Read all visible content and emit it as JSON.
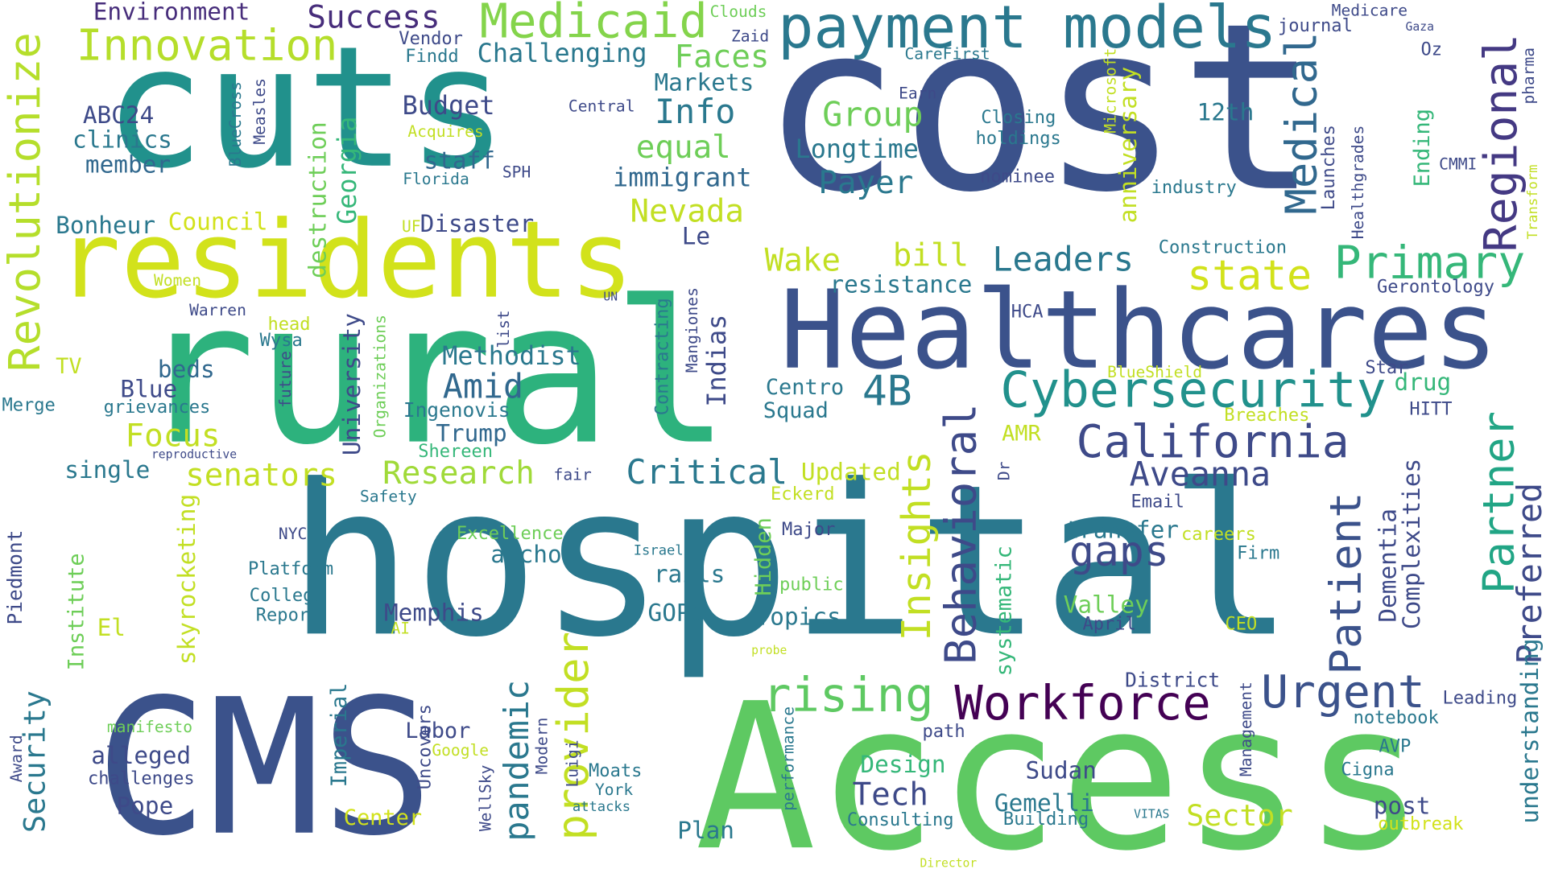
{
  "words": [
    {
      "text": "hospital",
      "color": "#2a788e"
    },
    {
      "text": "cost",
      "color": "#3b528b"
    },
    {
      "text": "cuts",
      "color": "#21918c"
    },
    {
      "text": "rural",
      "color": "#2db27d"
    },
    {
      "text": "residents",
      "color": "#d2e21b"
    },
    {
      "text": "Access",
      "color": "#5ec962"
    },
    {
      "text": "CMS",
      "color": "#3b528b"
    },
    {
      "text": "Healthcares",
      "color": "#3b528b"
    },
    {
      "text": "payment models",
      "color": "#2a788e"
    },
    {
      "text": "Medicaid",
      "color": "#84d44b"
    },
    {
      "text": "Innovation",
      "color": "#b5de2b"
    },
    {
      "text": "Success",
      "color": "#472d7b"
    },
    {
      "text": "Environment",
      "color": "#472d7b"
    },
    {
      "text": "Revolutionize",
      "color": "#b5de2b"
    },
    {
      "text": "Cybersecurity",
      "color": "#21918c"
    },
    {
      "text": "California",
      "color": "#3e4a89"
    },
    {
      "text": "Primary",
      "color": "#35b779"
    },
    {
      "text": "Regional",
      "color": "#443983"
    },
    {
      "text": "Medical",
      "color": "#31688e"
    },
    {
      "text": "Partner",
      "color": "#21a585"
    },
    {
      "text": "Patient",
      "color": "#3b528b"
    },
    {
      "text": "Behavioral",
      "color": "#3e4a89"
    },
    {
      "text": "Insights",
      "color": "#c2df23"
    },
    {
      "text": "Workforce",
      "color": "#440154"
    },
    {
      "text": "Urgent",
      "color": "#3b528b"
    },
    {
      "text": "rising",
      "color": "#5ec962"
    },
    {
      "text": "provider",
      "color": "#c2df23"
    },
    {
      "text": "pandemic",
      "color": "#2a788e"
    },
    {
      "text": "gaps",
      "color": "#3e4a89"
    },
    {
      "text": "state",
      "color": "#d2e21b"
    },
    {
      "text": "Leaders",
      "color": "#2a788e"
    },
    {
      "text": "Preferred",
      "color": "#3e4a89"
    },
    {
      "text": "Aveanna",
      "color": "#3e4a89"
    },
    {
      "text": "Critical",
      "color": "#2a788e"
    },
    {
      "text": "Research",
      "color": "#a0da39"
    },
    {
      "text": "senators",
      "color": "#c2df23"
    },
    {
      "text": "Amid",
      "color": "#31688e"
    },
    {
      "text": "4B",
      "color": "#2a788e"
    },
    {
      "text": "Focus",
      "color": "#c2df23"
    },
    {
      "text": "Security",
      "color": "#2a788e"
    },
    {
      "text": "Group",
      "color": "#6ece58"
    },
    {
      "text": "Info",
      "color": "#2a788e"
    },
    {
      "text": "equal",
      "color": "#6ece58"
    },
    {
      "text": "Faces",
      "color": "#6ece58"
    },
    {
      "text": "Challenging",
      "color": "#2a788e"
    },
    {
      "text": "Markets",
      "color": "#2a788e"
    },
    {
      "text": "Budget",
      "color": "#3e4a89"
    },
    {
      "text": "Longtime",
      "color": "#2a788e"
    },
    {
      "text": "Payer",
      "color": "#2a788e"
    },
    {
      "text": "immigrant",
      "color": "#31688e"
    },
    {
      "text": "Nevada",
      "color": "#c2df23"
    },
    {
      "text": "staff",
      "color": "#31688e"
    },
    {
      "text": "Wake",
      "color": "#c2df23"
    },
    {
      "text": "bill",
      "color": "#c2df23"
    },
    {
      "text": "resistance",
      "color": "#2a788e"
    },
    {
      "text": "Methodist",
      "color": "#2a788e"
    },
    {
      "text": "Disaster",
      "color": "#3e4a89"
    },
    {
      "text": "Council",
      "color": "#d2e21b"
    },
    {
      "text": "Bonheur",
      "color": "#2a788e"
    },
    {
      "text": "ABC24",
      "color": "#3e4a89"
    },
    {
      "text": "clinics",
      "color": "#2a788e"
    },
    {
      "text": "member",
      "color": "#31688e"
    },
    {
      "text": "Georgia",
      "color": "#35b779"
    },
    {
      "text": "destruction",
      "color": "#6ece58"
    },
    {
      "text": "University",
      "color": "#3e4a89"
    },
    {
      "text": "Organizations",
      "color": "#6ece58"
    },
    {
      "text": "Trump",
      "color": "#31688e"
    },
    {
      "text": "Ingenovis",
      "color": "#2a788e"
    },
    {
      "text": "Shereen",
      "color": "#35b779"
    },
    {
      "text": "beds",
      "color": "#31688e"
    },
    {
      "text": "Blue",
      "color": "#3e4a89"
    },
    {
      "text": "grievances",
      "color": "#2a788e"
    },
    {
      "text": "TV",
      "color": "#c2df23"
    },
    {
      "text": "Merge",
      "color": "#2a788e"
    },
    {
      "text": "single",
      "color": "#2a788e"
    },
    {
      "text": "Centro",
      "color": "#2a788e"
    },
    {
      "text": "Squad",
      "color": "#2a788e"
    },
    {
      "text": "Indias",
      "color": "#3e4a89"
    },
    {
      "text": "Le",
      "color": "#3e4a89"
    },
    {
      "text": "AMR",
      "color": "#c2df23"
    },
    {
      "text": "Updated",
      "color": "#c2df23"
    },
    {
      "text": "Eckerd",
      "color": "#c2df23"
    },
    {
      "text": "transfer",
      "color": "#2a788e"
    },
    {
      "text": "Email",
      "color": "#3e4a89"
    },
    {
      "text": "careers",
      "color": "#c2df23"
    },
    {
      "text": "Firm",
      "color": "#2a788e"
    },
    {
      "text": "Valley",
      "color": "#6ece58"
    },
    {
      "text": "April",
      "color": "#3e4a89"
    },
    {
      "text": "CEO",
      "color": "#c2df23"
    },
    {
      "text": "Dementia",
      "color": "#3e4a89"
    },
    {
      "text": "Complexities",
      "color": "#3e4a89"
    },
    {
      "text": "understanding",
      "color": "#2a788e"
    },
    {
      "text": "systematic",
      "color": "#35b779"
    },
    {
      "text": "Dr",
      "color": "#3e4a89"
    },
    {
      "text": "anchor",
      "color": "#2a788e"
    },
    {
      "text": "rails",
      "color": "#2a788e"
    },
    {
      "text": "GOPs",
      "color": "#2a788e"
    },
    {
      "text": "Topics",
      "color": "#2a788e"
    },
    {
      "text": "Hidden",
      "color": "#6ece58"
    },
    {
      "text": "public",
      "color": "#6ece58"
    },
    {
      "text": "Major",
      "color": "#3e4a89"
    },
    {
      "text": "Israels",
      "color": "#2a788e"
    },
    {
      "text": "Excellence",
      "color": "#6ece58"
    },
    {
      "text": "skyrocketing",
      "color": "#c2df23"
    },
    {
      "text": "Platform",
      "color": "#2a788e"
    },
    {
      "text": "College",
      "color": "#2a788e"
    },
    {
      "text": "Report",
      "color": "#2a788e"
    },
    {
      "text": "NYC",
      "color": "#3e4a89"
    },
    {
      "text": "Memphis",
      "color": "#3e4a89"
    },
    {
      "text": "AI",
      "color": "#c2df23"
    },
    {
      "text": "El",
      "color": "#c2df23"
    },
    {
      "text": "Institute",
      "color": "#6ece58"
    },
    {
      "text": "Piedmont",
      "color": "#3e4a89"
    },
    {
      "text": "Safety",
      "color": "#2a788e"
    },
    {
      "text": "fair",
      "color": "#3e4a89"
    },
    {
      "text": "reproductive",
      "color": "#3e4a89"
    },
    {
      "text": "District",
      "color": "#3e4a89"
    },
    {
      "text": "Labor",
      "color": "#3e4a89"
    },
    {
      "text": "alleged",
      "color": "#3e4a89"
    },
    {
      "text": "challenges",
      "color": "#3e4a89"
    },
    {
      "text": "Pope",
      "color": "#3e4a89"
    },
    {
      "text": "manifesto",
      "color": "#6ece58"
    },
    {
      "text": "Imperial",
      "color": "#2a788e"
    },
    {
      "text": "Center",
      "color": "#d2e21b"
    },
    {
      "text": "Google",
      "color": "#c2df23"
    },
    {
      "text": "Uncovers",
      "color": "#3e4a89"
    },
    {
      "text": "Modern",
      "color": "#3e4a89"
    },
    {
      "text": "Luigi",
      "color": "#3e4a89"
    },
    {
      "text": "Moats",
      "color": "#2a788e"
    },
    {
      "text": "York",
      "color": "#2a788e"
    },
    {
      "text": "attacks",
      "color": "#2a788e"
    },
    {
      "text": "WellSky",
      "color": "#3e4a89"
    },
    {
      "text": "Award",
      "color": "#3e4a89"
    },
    {
      "text": "Plan",
      "color": "#2a788e"
    },
    {
      "text": "performance",
      "color": "#2a788e"
    },
    {
      "text": "Design",
      "color": "#35b779"
    },
    {
      "text": "Tech",
      "color": "#3e4a89"
    },
    {
      "text": "Consulting",
      "color": "#2a788e"
    },
    {
      "text": "path",
      "color": "#3e4a89"
    },
    {
      "text": "Sudan",
      "color": "#3e4a89"
    },
    {
      "text": "Gemelli",
      "color": "#2a788e"
    },
    {
      "text": "Building",
      "color": "#2a788e"
    },
    {
      "text": "Sector",
      "color": "#c2df23"
    },
    {
      "text": "VITAS",
      "color": "#2a788e"
    },
    {
      "text": "Management",
      "color": "#3e4a89"
    },
    {
      "text": "post",
      "color": "#3e4a89"
    },
    {
      "text": "outbreak",
      "color": "#d2e21b"
    },
    {
      "text": "notebook",
      "color": "#2a788e"
    },
    {
      "text": "Leading",
      "color": "#3e4a89"
    },
    {
      "text": "AVP",
      "color": "#2a788e"
    },
    {
      "text": "Cigna",
      "color": "#2a788e"
    },
    {
      "text": "Director",
      "color": "#c2df23"
    },
    {
      "text": "probe",
      "color": "#c2df23"
    },
    {
      "text": "Contracting",
      "color": "#2a788e"
    },
    {
      "text": "Mangiones",
      "color": "#3e4a89"
    },
    {
      "text": "list",
      "color": "#3e4a89"
    },
    {
      "text": "UN",
      "color": "#3e4a89"
    },
    {
      "text": "Warren",
      "color": "#3e4a89"
    },
    {
      "text": "head",
      "color": "#c2df23"
    },
    {
      "text": "Wysa",
      "color": "#2a788e"
    },
    {
      "text": "future",
      "color": "#3e4a89"
    },
    {
      "text": "Women",
      "color": "#c2df23"
    },
    {
      "text": "UF",
      "color": "#c2df23"
    },
    {
      "text": "Florida",
      "color": "#2a788e"
    },
    {
      "text": "SPH",
      "color": "#3e4a89"
    },
    {
      "text": "Acquires",
      "color": "#c2df23"
    },
    {
      "text": "Central",
      "color": "#3e4a89"
    },
    {
      "text": "Vendor",
      "color": "#3e4a89"
    },
    {
      "text": "Findd",
      "color": "#2a788e"
    },
    {
      "text": "Zaid",
      "color": "#3e4a89"
    },
    {
      "text": "Clouds",
      "color": "#6ece58"
    },
    {
      "text": "Measles",
      "color": "#3e4a89"
    },
    {
      "text": "BlueCross",
      "color": "#2a788e"
    },
    {
      "text": "Earn",
      "color": "#3e4a89"
    },
    {
      "text": "CareFirst",
      "color": "#2a788e"
    },
    {
      "text": "Closing",
      "color": "#2a788e"
    },
    {
      "text": "holdings",
      "color": "#2a788e"
    },
    {
      "text": "nominee",
      "color": "#3e4a89"
    },
    {
      "text": "Microsoft",
      "color": "#c2df23"
    },
    {
      "text": "anniversary",
      "color": "#c2df23"
    },
    {
      "text": "12th",
      "color": "#2a788e"
    },
    {
      "text": "Launches",
      "color": "#3e4a89"
    },
    {
      "text": "Construction",
      "color": "#2a788e"
    },
    {
      "text": "industry",
      "color": "#2a788e"
    },
    {
      "text": "Healthgrades",
      "color": "#3e4a89"
    },
    {
      "text": "Ending",
      "color": "#35b779"
    },
    {
      "text": "CMMI",
      "color": "#3e4a89"
    },
    {
      "text": "pharma",
      "color": "#3e4a89"
    },
    {
      "text": "Transform",
      "color": "#c2df23"
    },
    {
      "text": "Oz",
      "color": "#3e4a89"
    },
    {
      "text": "journal",
      "color": "#3e4a89"
    },
    {
      "text": "Medicare",
      "color": "#3e4a89"
    },
    {
      "text": "Gaza",
      "color": "#3e4a89"
    },
    {
      "text": "Gerontology",
      "color": "#3e4a89"
    },
    {
      "text": "HCA",
      "color": "#3e4a89"
    },
    {
      "text": "BlueShield",
      "color": "#c2df23"
    },
    {
      "text": "Star",
      "color": "#3e4a89"
    },
    {
      "text": "drug",
      "color": "#35b779"
    },
    {
      "text": "HITT",
      "color": "#3e4a89"
    },
    {
      "text": "Breaches",
      "color": "#c2df23"
    }
  ]
}
